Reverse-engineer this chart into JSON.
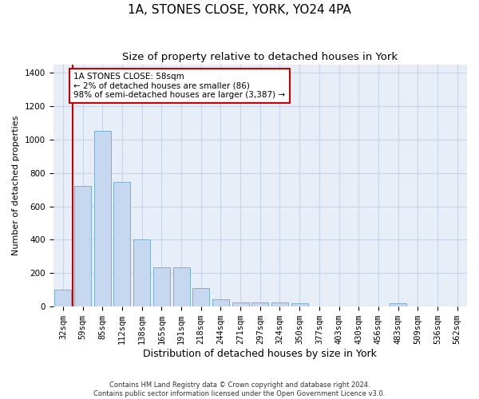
{
  "title": "1A, STONES CLOSE, YORK, YO24 4PA",
  "subtitle": "Size of property relative to detached houses in York",
  "xlabel": "Distribution of detached houses by size in York",
  "ylabel": "Number of detached properties",
  "categories": [
    "32sqm",
    "59sqm",
    "85sqm",
    "112sqm",
    "138sqm",
    "165sqm",
    "191sqm",
    "218sqm",
    "244sqm",
    "271sqm",
    "297sqm",
    "324sqm",
    "350sqm",
    "377sqm",
    "403sqm",
    "430sqm",
    "456sqm",
    "483sqm",
    "509sqm",
    "536sqm",
    "562sqm"
  ],
  "values": [
    100,
    720,
    1050,
    745,
    400,
    235,
    235,
    110,
    42,
    25,
    27,
    27,
    20,
    0,
    0,
    0,
    0,
    20,
    0,
    0,
    0
  ],
  "bar_color": "#c5d8ef",
  "bar_edgecolor": "#7aafd4",
  "annotation_box_text": "1A STONES CLOSE: 58sqm\n← 2% of detached houses are smaller (86)\n98% of semi-detached houses are larger (3,387) →",
  "annotation_line_color": "#cc0000",
  "annotation_box_edgecolor": "#cc0000",
  "ylim": [
    0,
    1450
  ],
  "yticks": [
    0,
    200,
    400,
    600,
    800,
    1000,
    1200,
    1400
  ],
  "grid_color": "#c8d4e8",
  "background_color": "#e8eef8",
  "footer_text": "Contains HM Land Registry data © Crown copyright and database right 2024.\nContains public sector information licensed under the Open Government Licence v3.0.",
  "title_fontsize": 11,
  "subtitle_fontsize": 9.5,
  "ylabel_fontsize": 8,
  "xlabel_fontsize": 9,
  "annotation_fontsize": 7.5,
  "footer_fontsize": 6,
  "tick_fontsize": 7.5
}
